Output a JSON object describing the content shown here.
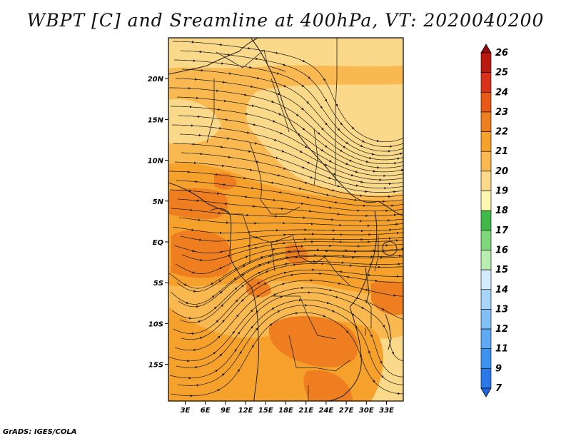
{
  "footer": "GrADS: IGES/COLA",
  "colors": {
    "c19_20": "#fbd98b",
    "c20_21": "#f9b850",
    "c21_22": "#f5a12c",
    "c22_23": "#ee7e1f",
    "streamline": "#1a1a1a",
    "coast": "#222222"
  },
  "chart_data": {
    "type": "heatmap",
    "title": "WBPT [C] and Sreamline at 400hPa, VT: 2020040200",
    "x_tick_labels": [
      "3E",
      "6E",
      "9E",
      "12E",
      "15E",
      "18E",
      "21E",
      "24E",
      "27E",
      "30E",
      "33E"
    ],
    "x_ticks": [
      3,
      6,
      9,
      12,
      15,
      18,
      21,
      24,
      27,
      30,
      33
    ],
    "y_tick_labels": [
      "20N",
      "15N",
      "10N",
      "5N",
      "EQ",
      "5S",
      "10S",
      "15S"
    ],
    "y_ticks": [
      20,
      15,
      10,
      5,
      0,
      -5,
      -10,
      -15
    ],
    "xlim": [
      0.5,
      35.5
    ],
    "ylim": [
      -19.5,
      25
    ],
    "colorbar": {
      "labels": [
        "7",
        "9",
        "11",
        "12",
        "13",
        "14",
        "15",
        "16",
        "17",
        "18",
        "19",
        "20",
        "21",
        "22",
        "23",
        "24",
        "25",
        "26"
      ],
      "colors": [
        "#1e64dc",
        "#2b79e8",
        "#3c92f0",
        "#5ea8f4",
        "#82bff7",
        "#a8d4fa",
        "#d2ecfc",
        "#b8eeb0",
        "#7ed87a",
        "#3fb847",
        "#fdf6b0",
        "#fbd98b",
        "#f9b850",
        "#f5a12c",
        "#ee7e1f",
        "#e75a18",
        "#d8331a",
        "#b9190e",
        "#980c0a"
      ]
    }
  }
}
